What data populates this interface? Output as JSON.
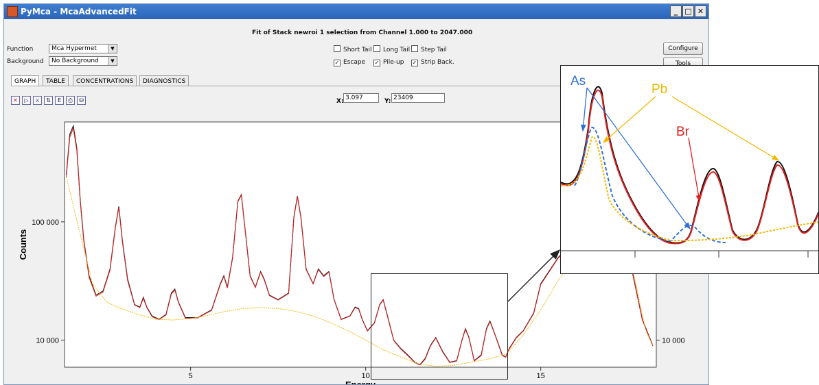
{
  "window": {
    "title": "PyMca - McaAdvancedFit",
    "minimize": "_",
    "maximize": "□",
    "close": "✕"
  },
  "header": {
    "fit_title": "Fit of Stack newroi 1 selection from Channel 1.000 to 2047.000"
  },
  "controls": {
    "function_label": "Function",
    "function_value": "Mca Hypermet",
    "background_label": "Background",
    "background_value": "No Background",
    "short_tail": {
      "label": "Short Tail",
      "checked": false
    },
    "long_tail": {
      "label": "Long Tail",
      "checked": false
    },
    "step_tail": {
      "label": "Step Tail",
      "checked": false
    },
    "escape": {
      "label": "Escape",
      "checked": true
    },
    "pileup": {
      "label": "Pile-up",
      "checked": true
    },
    "strip_back": {
      "label": "Strip Back.",
      "checked": true
    },
    "configure_label": "Configure",
    "tools_label": "Tools"
  },
  "tabs": [
    {
      "label": "GRAPH",
      "active": true
    },
    {
      "label": "TABLE",
      "active": false
    },
    {
      "label": "CONCENTRATIONS",
      "active": false
    },
    {
      "label": "DIAGNOSTICS",
      "active": false
    }
  ],
  "toolbar": {
    "icons": [
      "autoscale-icon",
      "zoom-icon",
      "fit-icon",
      "log-icon",
      "energy-icon",
      "print-icon",
      "save-icon"
    ],
    "x_label": "X:",
    "x_value": "3.097",
    "y_label": "Y:",
    "y_value": "23409"
  },
  "chart_data": {
    "type": "line",
    "ylabel": "Counts",
    "xlabel": "Energy",
    "yscale": "log",
    "xlim": [
      1.4,
      18.3
    ],
    "ylim": [
      5900,
      700000
    ],
    "x_ticks": [
      "5",
      "10",
      "15"
    ],
    "y_ticks": [
      "100 000",
      "10 000"
    ],
    "y_ticks_right": [
      "10 000"
    ],
    "series": [
      {
        "style": "measured",
        "color": "#222222",
        "x": [
          1.45,
          1.55,
          1.65,
          1.75,
          1.85,
          1.95,
          2.1,
          2.3,
          2.5,
          2.7,
          2.85,
          2.95,
          3.05,
          3.2,
          3.4,
          3.55,
          3.65,
          3.75,
          3.9,
          4.1,
          4.3,
          4.45,
          4.55,
          4.65,
          4.85,
          5.2,
          5.6,
          5.85,
          5.95,
          6.05,
          6.2,
          6.35,
          6.45,
          6.55,
          6.7,
          6.85,
          7.0,
          7.1,
          7.25,
          7.5,
          7.8,
          7.95,
          8.05,
          8.15,
          8.3,
          8.5,
          8.65,
          8.8,
          8.95,
          9.1,
          9.3,
          9.55,
          9.7,
          9.8,
          9.9,
          10.05,
          10.25,
          10.4,
          10.5,
          10.6,
          10.8,
          11.0,
          11.2,
          11.4,
          11.55,
          11.7,
          11.85,
          12.0,
          12.2,
          12.4,
          12.6,
          12.75,
          12.85,
          12.95,
          13.1,
          13.3,
          13.45,
          13.55,
          13.7,
          13.9,
          14.0,
          14.1,
          14.3,
          14.5,
          14.8,
          15.0,
          15.5,
          16.0,
          16.5,
          17.0,
          17.3,
          17.6,
          17.9,
          18.2
        ],
        "y": [
          250000,
          550000,
          650000,
          420000,
          150000,
          70000,
          35000,
          24000,
          26000,
          40000,
          90000,
          135000,
          70000,
          33000,
          20000,
          19000,
          23000,
          19000,
          16000,
          15000,
          16500,
          25000,
          27000,
          21000,
          15500,
          15500,
          18000,
          30000,
          35000,
          28000,
          50000,
          150000,
          170000,
          90000,
          35000,
          28000,
          38000,
          33000,
          24000,
          22000,
          25000,
          110000,
          165000,
          110000,
          40000,
          30000,
          40000,
          35000,
          38000,
          22000,
          15000,
          16000,
          19000,
          18500,
          15000,
          12000,
          14000,
          20000,
          22000,
          17000,
          10000,
          8500,
          7500,
          6500,
          6200,
          7000,
          9000,
          10500,
          8000,
          6500,
          6700,
          10000,
          12500,
          10500,
          6700,
          7500,
          12500,
          14500,
          11000,
          7500,
          7200,
          8500,
          10500,
          12000,
          17000,
          30000,
          50000,
          70000,
          90000,
          110000,
          90000,
          40000,
          15000,
          9000
        ]
      },
      {
        "style": "fit",
        "color": "#e02020",
        "x": [
          1.45,
          1.55,
          1.65,
          1.75,
          1.85,
          1.95,
          2.1,
          2.3,
          2.5,
          2.7,
          2.85,
          2.95,
          3.05,
          3.2,
          3.4,
          3.55,
          3.65,
          3.75,
          3.9,
          4.1,
          4.3,
          4.45,
          4.55,
          4.65,
          4.85,
          5.2,
          5.6,
          5.85,
          5.95,
          6.05,
          6.2,
          6.35,
          6.45,
          6.55,
          6.7,
          6.85,
          7.0,
          7.1,
          7.25,
          7.5,
          7.8,
          7.95,
          8.05,
          8.15,
          8.3,
          8.5,
          8.65,
          8.8,
          8.95,
          9.1,
          9.3,
          9.55,
          9.7,
          9.8,
          9.9,
          10.05,
          10.25,
          10.4,
          10.5,
          10.6,
          10.8,
          11.0,
          11.2,
          11.4,
          11.55,
          11.7,
          11.85,
          12.0,
          12.2,
          12.4,
          12.6,
          12.75,
          12.85,
          12.95,
          13.1,
          13.3,
          13.45,
          13.55,
          13.7,
          13.9,
          14.0,
          14.1,
          14.3,
          14.5,
          14.8,
          15.0,
          15.5,
          16.0,
          16.5,
          17.0,
          17.3,
          17.6,
          17.9,
          18.2
        ],
        "y": [
          240000,
          520000,
          620000,
          400000,
          145000,
          68000,
          34000,
          23500,
          25500,
          39000,
          88000,
          132000,
          68000,
          32000,
          19800,
          18800,
          22500,
          18800,
          15800,
          14900,
          16300,
          24500,
          26500,
          20800,
          15300,
          15400,
          17800,
          29500,
          34500,
          27500,
          49000,
          148000,
          168000,
          89000,
          34500,
          27800,
          37500,
          32500,
          23800,
          21800,
          24800,
          108000,
          162000,
          108000,
          39500,
          29800,
          39500,
          34500,
          37500,
          21800,
          14900,
          15900,
          18800,
          18300,
          14900,
          11900,
          13900,
          19800,
          21800,
          16800,
          9900,
          8400,
          7400,
          6450,
          6150,
          6900,
          8900,
          10400,
          7900,
          6450,
          6650,
          9900,
          12300,
          10400,
          6650,
          7400,
          12300,
          14300,
          10900,
          7400,
          7150,
          8400,
          10400,
          11900,
          16800,
          29500,
          49500,
          69000,
          89000,
          108000,
          88000,
          39000,
          14800,
          8900
        ]
      },
      {
        "style": "background",
        "color": "#f0c020",
        "x": [
          1.45,
          1.8,
          2.2,
          2.6,
          3.0,
          3.5,
          4.0,
          4.5,
          5.0,
          5.5,
          6.0,
          6.5,
          7.0,
          7.5,
          8.0,
          8.5,
          9.0,
          9.5,
          10.0,
          10.5,
          11.0,
          11.5,
          12.0,
          12.5,
          13.0,
          13.5,
          14.0,
          14.5,
          15.0,
          15.5,
          16.0,
          16.5,
          17.0,
          17.5,
          18.0,
          18.2
        ],
        "y": [
          240000,
          90000,
          30000,
          21000,
          18500,
          16500,
          15000,
          14800,
          15200,
          16200,
          17500,
          18500,
          18800,
          18500,
          17500,
          16000,
          14000,
          12000,
          10000,
          8300,
          7200,
          6300,
          6000,
          6100,
          6500,
          6900,
          7600,
          11000,
          18000,
          32000,
          50000,
          68000,
          85000,
          60000,
          12000,
          9000
        ]
      }
    ]
  },
  "inset": {
    "labels": [
      {
        "text": "As",
        "color": "#2e6fd6"
      },
      {
        "text": "Pb",
        "color": "#f2b800"
      },
      {
        "text": "Br",
        "color": "#e02020"
      }
    ]
  }
}
